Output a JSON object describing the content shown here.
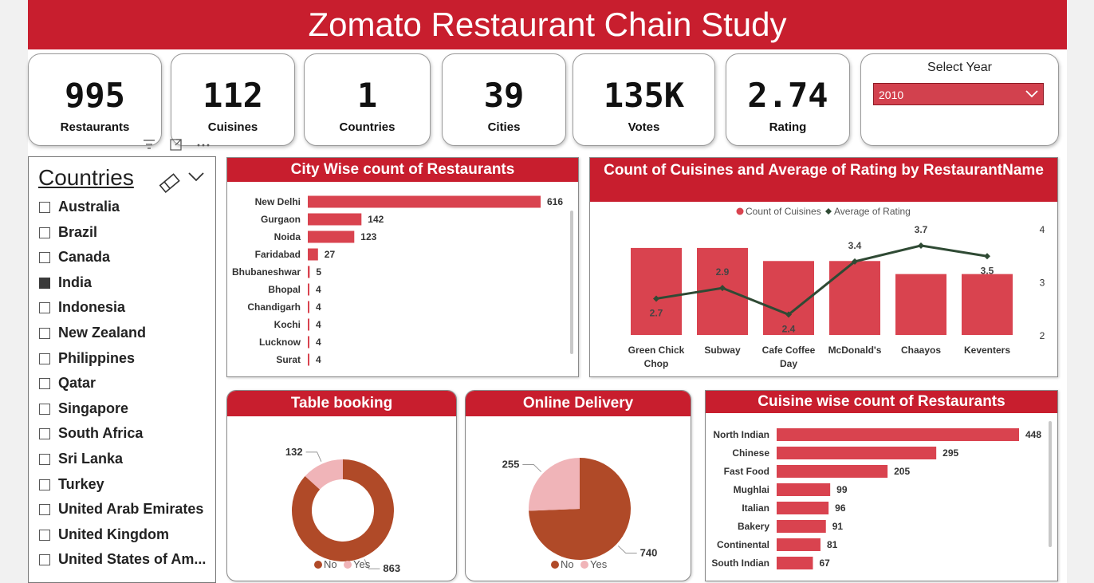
{
  "title": "Zomato Restaurant Chain Study",
  "kpis": [
    {
      "value": "995",
      "label": "Restaurants"
    },
    {
      "value": "112",
      "label": "Cuisines"
    },
    {
      "value": "1",
      "label": "Countries"
    },
    {
      "value": "39",
      "label": "Cities"
    },
    {
      "value": "135K",
      "label": "Votes"
    },
    {
      "value": "2.74",
      "label": "Rating"
    }
  ],
  "year_selector": {
    "label": "Select Year",
    "value": "2010"
  },
  "slicer": {
    "title": "Countries",
    "items": [
      {
        "label": "Australia",
        "checked": false
      },
      {
        "label": "Brazil",
        "checked": false
      },
      {
        "label": "Canada",
        "checked": false
      },
      {
        "label": "India",
        "checked": true
      },
      {
        "label": "Indonesia",
        "checked": false
      },
      {
        "label": "New Zealand",
        "checked": false
      },
      {
        "label": "Philippines",
        "checked": false
      },
      {
        "label": "Qatar",
        "checked": false
      },
      {
        "label": "Singapore",
        "checked": false
      },
      {
        "label": "South Africa",
        "checked": false
      },
      {
        "label": "Sri Lanka",
        "checked": false
      },
      {
        "label": "Turkey",
        "checked": false
      },
      {
        "label": "United Arab Emirates",
        "checked": false
      },
      {
        "label": "United Kingdom",
        "checked": false
      },
      {
        "label": "United States of Am..."
      }
    ]
  },
  "colors": {
    "brand": "#c81e2e",
    "bar": "#d9434f",
    "line": "#2f4a34",
    "no": "#b04a28",
    "yes": "#f0b4b8"
  },
  "chart_data": [
    {
      "id": "city",
      "type": "bar",
      "orientation": "horizontal",
      "title": "City Wise count of Restaurants",
      "categories": [
        "New Delhi",
        "Gurgaon",
        "Noida",
        "Faridabad",
        "Bhubaneshwar",
        "Bhopal",
        "Chandigarh",
        "Kochi",
        "Lucknow",
        "Surat"
      ],
      "values": [
        616,
        142,
        123,
        27,
        5,
        4,
        4,
        4,
        4,
        4
      ]
    },
    {
      "id": "combo",
      "type": "bar",
      "title": "Count of Cuisines and Average of Rating by RestaurantName",
      "legend": [
        "Count of Cuisines",
        "Average of Rating"
      ],
      "categories": [
        "Green Chick Chop",
        "Subway",
        "Cafe Coffee Day",
        "McDonald's",
        "Chaayos",
        "Keventers"
      ],
      "series": [
        {
          "name": "Count of Cuisines",
          "type": "bar",
          "values": [
            20,
            20,
            17,
            17,
            14,
            14
          ]
        },
        {
          "name": "Average of Rating",
          "type": "line",
          "values": [
            2.7,
            2.9,
            2.4,
            3.4,
            3.7,
            3.5
          ]
        }
      ],
      "y2_ticks": [
        "4",
        "3",
        "2"
      ],
      "y2lim": [
        2,
        4
      ]
    },
    {
      "id": "table",
      "type": "pie",
      "donut": true,
      "title": "Table booking",
      "labels": [
        "No",
        "Yes"
      ],
      "values": [
        863,
        132
      ]
    },
    {
      "id": "online",
      "type": "pie",
      "donut": false,
      "title": "Online Delivery",
      "labels": [
        "No",
        "Yes"
      ],
      "values": [
        740,
        255
      ]
    },
    {
      "id": "cuisine",
      "type": "bar",
      "orientation": "horizontal",
      "title": "Cuisine wise count of Restaurants",
      "categories": [
        "North Indian",
        "Chinese",
        "Fast Food",
        "Mughlai",
        "Italian",
        "Bakery",
        "Continental",
        "South Indian"
      ],
      "values": [
        448,
        295,
        205,
        99,
        96,
        91,
        81,
        67
      ]
    }
  ]
}
